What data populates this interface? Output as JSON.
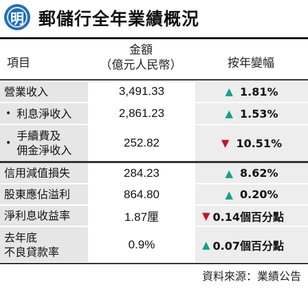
{
  "header": {
    "logo_char": "明",
    "title": "郵儲行全年業績概況"
  },
  "columns": {
    "item": "項目",
    "amount_line1": "金額",
    "amount_line2": "（億元人民幣）",
    "change": "按年變幅"
  },
  "rows": [
    {
      "label": "營業收入",
      "value": "3,491.33",
      "direction": "up",
      "change": "1.81%"
    },
    {
      "label": "利息淨收入",
      "value": "2,861.23",
      "direction": "up",
      "change": "1.53%",
      "bullet": "•"
    },
    {
      "label_line1": "手續費及",
      "label_line2": "佣金淨收入",
      "value": "252.82",
      "direction": "down",
      "change": "10.51%",
      "bullet": "•"
    },
    {
      "label": "信用減值損失",
      "value": "284.23",
      "direction": "up",
      "change": "8.62%"
    },
    {
      "label": "股東應佔溢利",
      "value": "864.80",
      "direction": "up",
      "change": "0.20%"
    },
    {
      "label": "淨利息收益率",
      "value": "1.87厘",
      "direction": "down",
      "change": "0.14個百分點"
    },
    {
      "label_line1": "去年底",
      "label_line2": "不良貸款率",
      "value": "0.9%",
      "direction": "up",
      "change": "0.07個百分點"
    }
  ],
  "glyphs": {
    "up": "▲",
    "down": "▼"
  },
  "colors": {
    "up": "#14a08b",
    "down": "#c8102e",
    "logo": "#1f6fb8"
  },
  "footer": {
    "source": "資料來源：業績公告"
  }
}
